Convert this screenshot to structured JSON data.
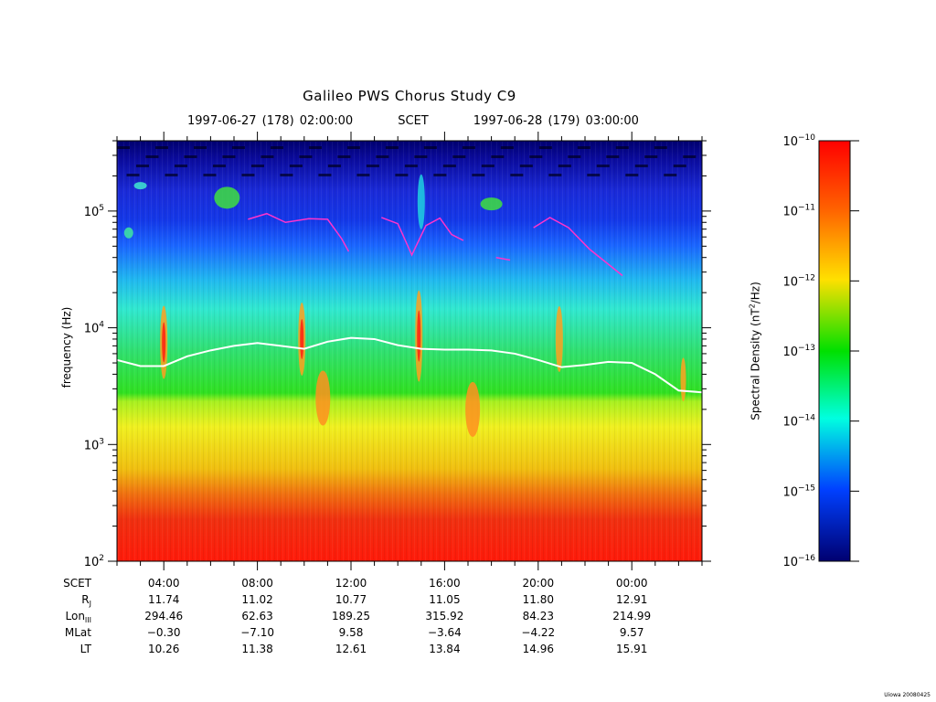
{
  "chart_data": {
    "type": "heatmap",
    "title": "Galileo PWS Chorus Study  C9",
    "time_range": {
      "start": "1997-06-27 (178) 02:00:00",
      "label": "SCET",
      "end": "1997-06-28 (179) 03:00:00"
    },
    "ylabel": "frequency (Hz)",
    "yscale": "log",
    "ylim": [
      100,
      400000
    ],
    "y_ticks": [
      {
        "value": 100,
        "base": "10",
        "exp": "2"
      },
      {
        "value": 1000,
        "base": "10",
        "exp": "3"
      },
      {
        "value": 10000,
        "base": "10",
        "exp": "4"
      },
      {
        "value": 100000,
        "base": "10",
        "exp": "5"
      }
    ],
    "x_start_hour": 2,
    "x_end_hour": 27,
    "x_ticks": [
      {
        "hour": 4,
        "label": "04:00"
      },
      {
        "hour": 8,
        "label": "08:00"
      },
      {
        "hour": 12,
        "label": "12:00"
      },
      {
        "hour": 16,
        "label": "16:00"
      },
      {
        "hour": 20,
        "label": "20:00"
      },
      {
        "hour": 24,
        "label": "00:00"
      }
    ],
    "colorbar": {
      "label": "Spectral Density (nT²/Hz)",
      "label_parts": [
        "Spectral Density (nT",
        "2",
        "/Hz)"
      ],
      "scale": "log",
      "range": [
        1e-16,
        1e-10
      ],
      "ticks": [
        {
          "base": "10",
          "exp": "−10"
        },
        {
          "base": "10",
          "exp": "−11"
        },
        {
          "base": "10",
          "exp": "−12"
        },
        {
          "base": "10",
          "exp": "−13"
        },
        {
          "base": "10",
          "exp": "−14"
        },
        {
          "base": "10",
          "exp": "−15"
        },
        {
          "base": "10",
          "exp": "−16"
        }
      ]
    },
    "electron_cyclotron_line": {
      "color": "#ffffff",
      "points": [
        [
          2,
          5300
        ],
        [
          3,
          4700
        ],
        [
          4,
          4700
        ],
        [
          5,
          5700
        ],
        [
          6,
          6400
        ],
        [
          7,
          7000
        ],
        [
          8,
          7400
        ],
        [
          9,
          7000
        ],
        [
          10,
          6600
        ],
        [
          11,
          7600
        ],
        [
          12,
          8200
        ],
        [
          13,
          8000
        ],
        [
          14,
          7100
        ],
        [
          15,
          6600
        ],
        [
          16,
          6500
        ],
        [
          17,
          6500
        ],
        [
          18,
          6400
        ],
        [
          19,
          6000
        ],
        [
          20,
          5300
        ],
        [
          21,
          4600
        ],
        [
          22,
          4800
        ],
        [
          23,
          5100
        ],
        [
          24,
          5000
        ],
        [
          25,
          4000
        ],
        [
          26,
          2900
        ],
        [
          27,
          2800
        ]
      ]
    },
    "chorus_upper_trace": {
      "color": "#ff33cc",
      "segments": [
        [
          [
            7.6,
            85000
          ],
          [
            8.4,
            95000
          ],
          [
            9.2,
            80000
          ],
          [
            10.2,
            86000
          ],
          [
            11.0,
            85000
          ],
          [
            11.6,
            58000
          ],
          [
            11.9,
            45000
          ]
        ],
        [
          [
            13.3,
            88000
          ],
          [
            14.0,
            78000
          ],
          [
            14.6,
            42000
          ],
          [
            15.2,
            75000
          ],
          [
            15.8,
            87000
          ],
          [
            16.3,
            63000
          ],
          [
            16.8,
            56000
          ]
        ],
        [
          [
            18.2,
            40000
          ],
          [
            18.8,
            38000
          ]
        ],
        [
          [
            19.8,
            72000
          ],
          [
            20.5,
            88000
          ],
          [
            21.3,
            72000
          ],
          [
            22.2,
            47000
          ],
          [
            23.0,
            35000
          ],
          [
            23.6,
            28000
          ]
        ]
      ]
    },
    "ephemeris": {
      "rows": [
        {
          "label": "SCET",
          "sub": "",
          "values": [
            "04:00",
            "08:00",
            "12:00",
            "16:00",
            "20:00",
            "00:00"
          ]
        },
        {
          "label": "R",
          "sub": "J",
          "values": [
            "11.74",
            "11.02",
            "10.77",
            "11.05",
            "11.80",
            "12.91"
          ]
        },
        {
          "label": "Lon",
          "sub": "III",
          "values": [
            "294.46",
            "62.63",
            "189.25",
            "315.92",
            "84.23",
            "214.99"
          ]
        },
        {
          "label": "MLat",
          "sub": "",
          "values": [
            "−0.30",
            "−7.10",
            "9.58",
            "−3.64",
            "−4.22",
            "9.57"
          ]
        },
        {
          "label": "LT",
          "sub": "",
          "values": [
            "10.26",
            "11.38",
            "12.61",
            "13.84",
            "14.96",
            "15.91"
          ]
        }
      ]
    }
  },
  "footer": "Uiowa 20080425"
}
